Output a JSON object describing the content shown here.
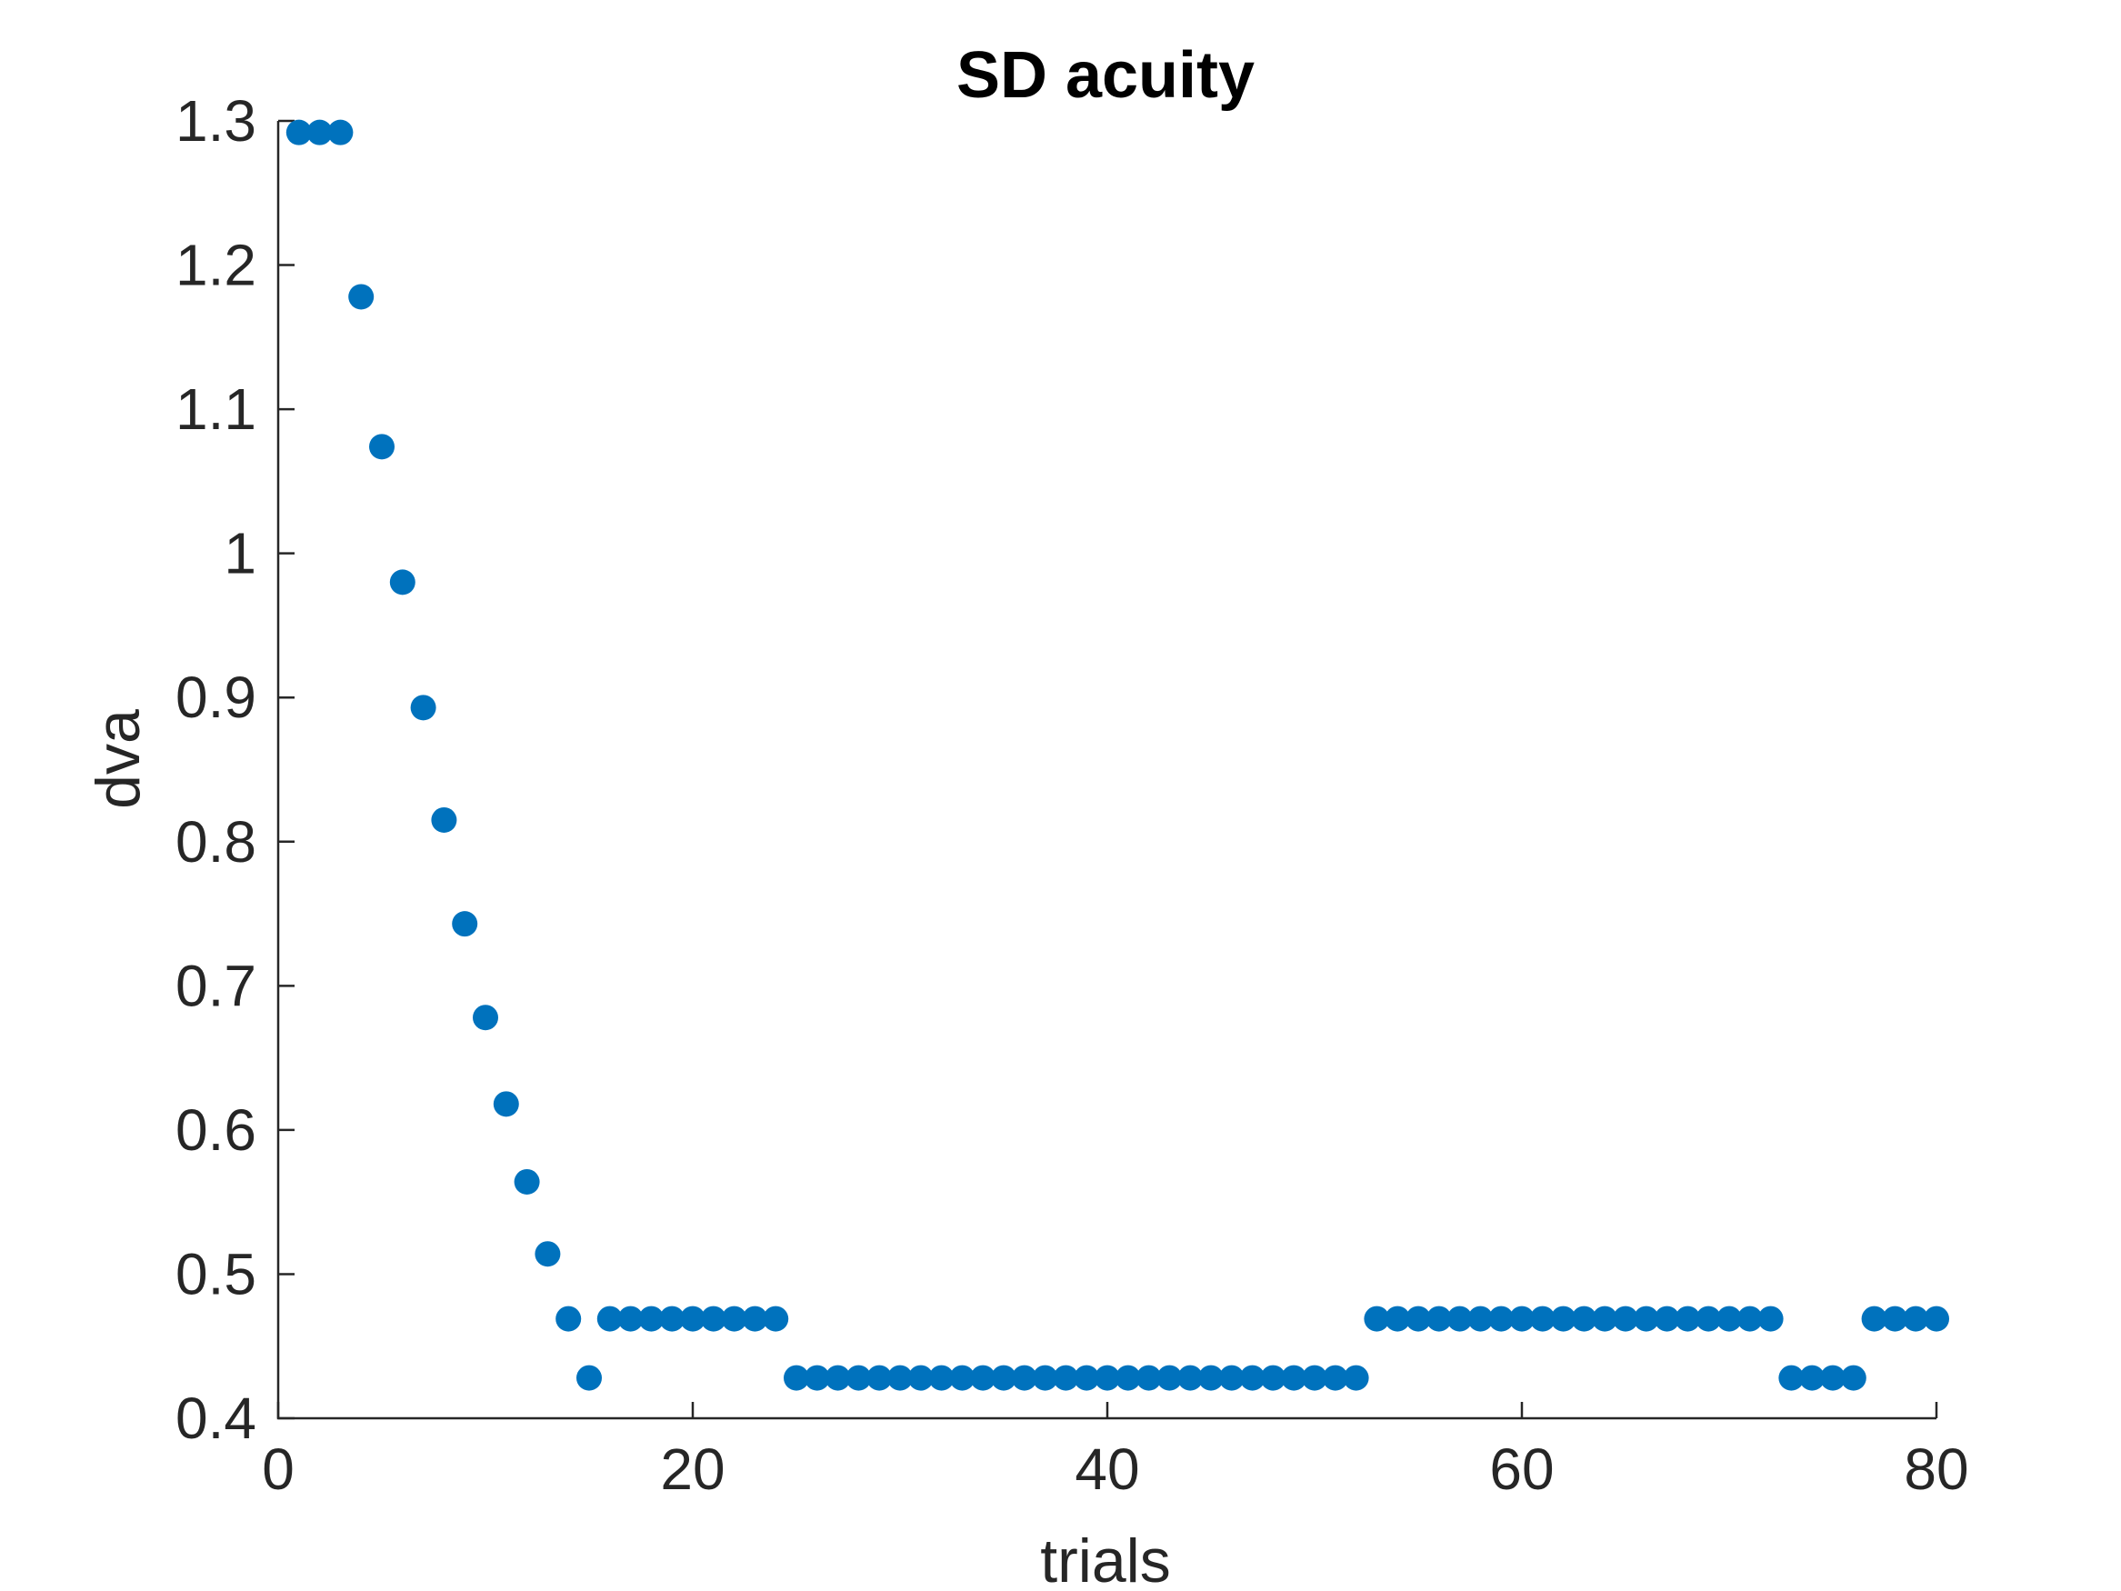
{
  "chart_data": {
    "type": "scatter",
    "title": "SD acuity",
    "xlabel": "trials",
    "ylabel": "dva",
    "xlim": [
      0,
      80
    ],
    "ylim": [
      0.4,
      1.3
    ],
    "xticks": [
      0,
      20,
      40,
      60,
      80
    ],
    "yticks": [
      0.4,
      0.5,
      0.6,
      0.7,
      0.8,
      0.9,
      1,
      1.1,
      1.2,
      1.3
    ],
    "xtick_labels": [
      "0",
      "20",
      "40",
      "60",
      "80"
    ],
    "ytick_labels": [
      "0.4",
      "0.5",
      "0.6",
      "0.7",
      "0.8",
      "0.9",
      "1",
      "1.1",
      "1.2",
      "1.3"
    ],
    "grid": false,
    "marker_color": "#0072BD",
    "series": [
      {
        "x": [
          1,
          2,
          3,
          4,
          5,
          6,
          7,
          8,
          9,
          10,
          11,
          12,
          13,
          14,
          15,
          16,
          17,
          18,
          19,
          20,
          21,
          22,
          23,
          24,
          25,
          26,
          27,
          28,
          29,
          30,
          31,
          32,
          33,
          34,
          35,
          36,
          37,
          38,
          39,
          40,
          41,
          42,
          43,
          44,
          45,
          46,
          47,
          48,
          49,
          50,
          51,
          52,
          53,
          54,
          55,
          56,
          57,
          58,
          59,
          60,
          61,
          62,
          63,
          64,
          65,
          66,
          67,
          68,
          69,
          70,
          71,
          72,
          73,
          74,
          75,
          76,
          77,
          78,
          79,
          80
        ],
        "y": [
          1.292,
          1.292,
          1.292,
          1.178,
          1.074,
          0.98,
          0.893,
          0.815,
          0.743,
          0.678,
          0.618,
          0.564,
          0.514,
          0.469,
          0.428,
          0.469,
          0.469,
          0.469,
          0.469,
          0.469,
          0.469,
          0.469,
          0.469,
          0.469,
          0.428,
          0.428,
          0.428,
          0.428,
          0.428,
          0.428,
          0.428,
          0.428,
          0.428,
          0.428,
          0.428,
          0.428,
          0.428,
          0.428,
          0.428,
          0.428,
          0.428,
          0.428,
          0.428,
          0.428,
          0.428,
          0.428,
          0.428,
          0.428,
          0.428,
          0.428,
          0.428,
          0.428,
          0.469,
          0.469,
          0.469,
          0.469,
          0.469,
          0.469,
          0.469,
          0.469,
          0.469,
          0.469,
          0.469,
          0.469,
          0.469,
          0.469,
          0.469,
          0.469,
          0.469,
          0.469,
          0.469,
          0.469,
          0.428,
          0.428,
          0.428,
          0.428,
          0.469,
          0.469,
          0.469,
          0.469
        ]
      }
    ]
  }
}
